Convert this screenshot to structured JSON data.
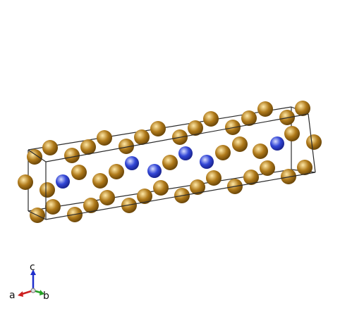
{
  "structure": {
    "colors": {
      "gold": "#b07a1a",
      "gold_highlight": "#ffe9a8",
      "gold_shadow": "#6b4608",
      "blue": "#3246d6",
      "blue_highlight": "#d7dcff",
      "blue_shadow": "#1a2490",
      "cell_edge": "#2b2b2b"
    },
    "atom_types": [
      "gold",
      "blue"
    ]
  },
  "axes": {
    "a_label": "a",
    "b_label": "b",
    "c_label": "c",
    "a_color": "#cc1f1f",
    "b_color": "#22a022",
    "c_color": "#1f2fcc"
  }
}
